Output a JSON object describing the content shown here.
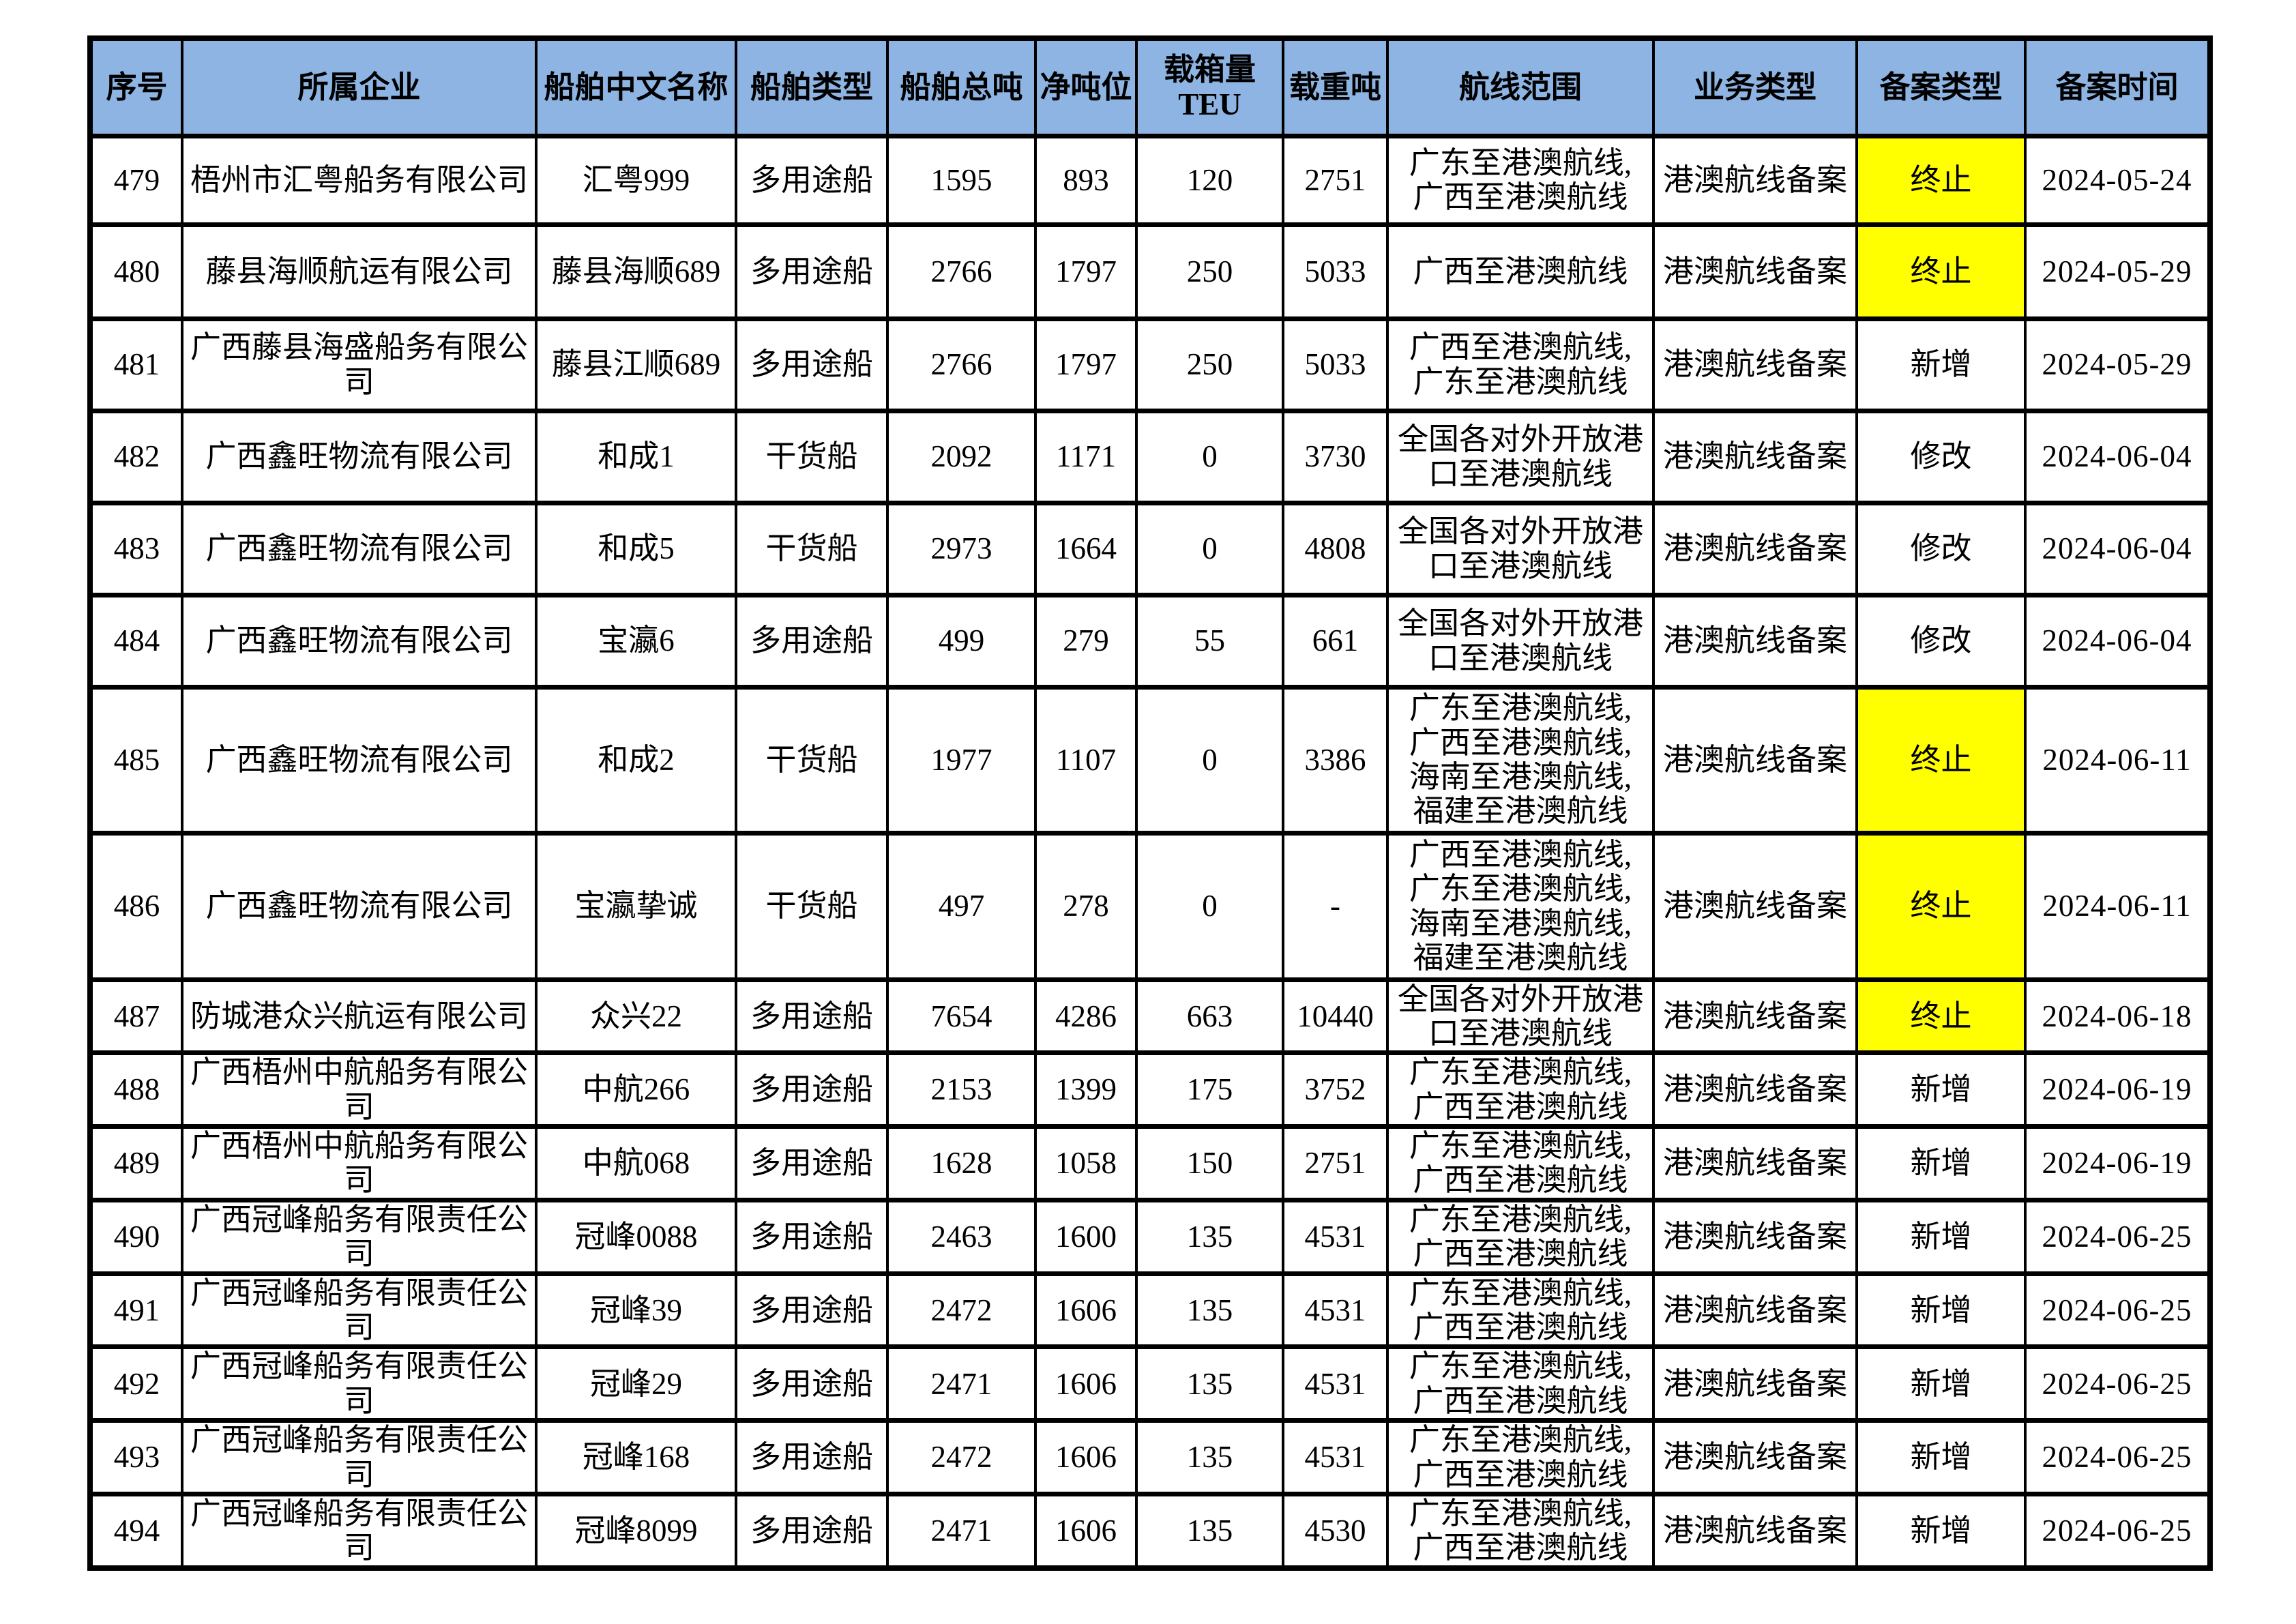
{
  "colors": {
    "header_bg": "#8DB4E2",
    "highlight": "#FFFF00",
    "border": "#000000",
    "page_bg": "#FFFFFF"
  },
  "table": {
    "columns": [
      {
        "key": "seq",
        "label": "序号"
      },
      {
        "key": "company",
        "label": "所属企业"
      },
      {
        "key": "ship_name",
        "label": "船舶中文名称"
      },
      {
        "key": "ship_type",
        "label": "船舶类型"
      },
      {
        "key": "gross_tonnage",
        "label": "船舶总吨"
      },
      {
        "key": "net_tonnage",
        "label": "净吨位"
      },
      {
        "key": "teu",
        "label": "载箱量TEU"
      },
      {
        "key": "dwt",
        "label": "载重吨"
      },
      {
        "key": "route",
        "label": "航线范围"
      },
      {
        "key": "business_type",
        "label": "业务类型"
      },
      {
        "key": "filing_type",
        "label": "备案类型"
      },
      {
        "key": "filing_date",
        "label": "备案时间"
      }
    ],
    "rows": [
      {
        "seq": "479",
        "company": "梧州市汇粤船务有限公司",
        "ship_name": "汇粤999",
        "ship_type": "多用途船",
        "gross_tonnage": "1595",
        "net_tonnage": "893",
        "teu": "120",
        "dwt": "2751",
        "route": "广东至港澳航线,\n广西至港澳航线",
        "business_type": "港澳航线备案",
        "filing_type": "终止",
        "filing_highlight": true,
        "filing_date": "2024-05-24"
      },
      {
        "seq": "480",
        "company": "藤县海顺航运有限公司",
        "ship_name": "藤县海顺689",
        "ship_type": "多用途船",
        "gross_tonnage": "2766",
        "net_tonnage": "1797",
        "teu": "250",
        "dwt": "5033",
        "route": "广西至港澳航线",
        "business_type": "港澳航线备案",
        "filing_type": "终止",
        "filing_highlight": true,
        "filing_date": "2024-05-29"
      },
      {
        "seq": "481",
        "company": "广西藤县海盛船务有限公司",
        "ship_name": "藤县江顺689",
        "ship_type": "多用途船",
        "gross_tonnage": "2766",
        "net_tonnage": "1797",
        "teu": "250",
        "dwt": "5033",
        "route": "广西至港澳航线,\n广东至港澳航线",
        "business_type": "港澳航线备案",
        "filing_type": "新增",
        "filing_highlight": false,
        "filing_date": "2024-05-29"
      },
      {
        "seq": "482",
        "company": "广西鑫旺物流有限公司",
        "ship_name": "和成1",
        "ship_type": "干货船",
        "gross_tonnage": "2092",
        "net_tonnage": "1171",
        "teu": "0",
        "dwt": "3730",
        "route": "全国各对外开放港\n口至港澳航线",
        "business_type": "港澳航线备案",
        "filing_type": "修改",
        "filing_highlight": false,
        "filing_date": "2024-06-04"
      },
      {
        "seq": "483",
        "company": "广西鑫旺物流有限公司",
        "ship_name": "和成5",
        "ship_type": "干货船",
        "gross_tonnage": "2973",
        "net_tonnage": "1664",
        "teu": "0",
        "dwt": "4808",
        "route": "全国各对外开放港\n口至港澳航线",
        "business_type": "港澳航线备案",
        "filing_type": "修改",
        "filing_highlight": false,
        "filing_date": "2024-06-04"
      },
      {
        "seq": "484",
        "company": "广西鑫旺物流有限公司",
        "ship_name": "宝瀛6",
        "ship_type": "多用途船",
        "gross_tonnage": "499",
        "net_tonnage": "279",
        "teu": "55",
        "dwt": "661",
        "route": "全国各对外开放港\n口至港澳航线",
        "business_type": "港澳航线备案",
        "filing_type": "修改",
        "filing_highlight": false,
        "filing_date": "2024-06-04"
      },
      {
        "seq": "485",
        "company": "广西鑫旺物流有限公司",
        "ship_name": "和成2",
        "ship_type": "干货船",
        "gross_tonnage": "1977",
        "net_tonnage": "1107",
        "teu": "0",
        "dwt": "3386",
        "route": "广东至港澳航线,\n广西至港澳航线,\n海南至港澳航线,\n福建至港澳航线",
        "business_type": "港澳航线备案",
        "filing_type": "终止",
        "filing_highlight": true,
        "filing_date": "2024-06-11"
      },
      {
        "seq": "486",
        "company": "广西鑫旺物流有限公司",
        "ship_name": "宝瀛挚诚",
        "ship_type": "干货船",
        "gross_tonnage": "497",
        "net_tonnage": "278",
        "teu": "0",
        "dwt": "-",
        "route": "广西至港澳航线,\n广东至港澳航线,\n海南至港澳航线,\n福建至港澳航线",
        "business_type": "港澳航线备案",
        "filing_type": "终止",
        "filing_highlight": true,
        "filing_date": "2024-06-11"
      },
      {
        "seq": "487",
        "company": "防城港众兴航运有限公司",
        "ship_name": "众兴22",
        "ship_type": "多用途船",
        "gross_tonnage": "7654",
        "net_tonnage": "4286",
        "teu": "663",
        "dwt": "10440",
        "route": "全国各对外开放港\n口至港澳航线",
        "business_type": "港澳航线备案",
        "filing_type": "终止",
        "filing_highlight": true,
        "filing_date": "2024-06-18"
      },
      {
        "seq": "488",
        "company": "广西梧州中航船务有限公司",
        "ship_name": "中航266",
        "ship_type": "多用途船",
        "gross_tonnage": "2153",
        "net_tonnage": "1399",
        "teu": "175",
        "dwt": "3752",
        "route": "广东至港澳航线,\n广西至港澳航线",
        "business_type": "港澳航线备案",
        "filing_type": "新增",
        "filing_highlight": false,
        "filing_date": "2024-06-19"
      },
      {
        "seq": "489",
        "company": "广西梧州中航船务有限公司",
        "ship_name": "中航068",
        "ship_type": "多用途船",
        "gross_tonnage": "1628",
        "net_tonnage": "1058",
        "teu": "150",
        "dwt": "2751",
        "route": "广东至港澳航线,\n广西至港澳航线",
        "business_type": "港澳航线备案",
        "filing_type": "新增",
        "filing_highlight": false,
        "filing_date": "2024-06-19"
      },
      {
        "seq": "490",
        "company": "广西冠峰船务有限责任公司",
        "ship_name": "冠峰0088",
        "ship_type": "多用途船",
        "gross_tonnage": "2463",
        "net_tonnage": "1600",
        "teu": "135",
        "dwt": "4531",
        "route": "广东至港澳航线,\n广西至港澳航线",
        "business_type": "港澳航线备案",
        "filing_type": "新增",
        "filing_highlight": false,
        "filing_date": "2024-06-25"
      },
      {
        "seq": "491",
        "company": "广西冠峰船务有限责任公司",
        "ship_name": "冠峰39",
        "ship_type": "多用途船",
        "gross_tonnage": "2472",
        "net_tonnage": "1606",
        "teu": "135",
        "dwt": "4531",
        "route": "广东至港澳航线,\n广西至港澳航线",
        "business_type": "港澳航线备案",
        "filing_type": "新增",
        "filing_highlight": false,
        "filing_date": "2024-06-25"
      },
      {
        "seq": "492",
        "company": "广西冠峰船务有限责任公司",
        "ship_name": "冠峰29",
        "ship_type": "多用途船",
        "gross_tonnage": "2471",
        "net_tonnage": "1606",
        "teu": "135",
        "dwt": "4531",
        "route": "广东至港澳航线,\n广西至港澳航线",
        "business_type": "港澳航线备案",
        "filing_type": "新增",
        "filing_highlight": false,
        "filing_date": "2024-06-25"
      },
      {
        "seq": "493",
        "company": "广西冠峰船务有限责任公司",
        "ship_name": "冠峰168",
        "ship_type": "多用途船",
        "gross_tonnage": "2472",
        "net_tonnage": "1606",
        "teu": "135",
        "dwt": "4531",
        "route": "广东至港澳航线,\n广西至港澳航线",
        "business_type": "港澳航线备案",
        "filing_type": "新增",
        "filing_highlight": false,
        "filing_date": "2024-06-25"
      },
      {
        "seq": "494",
        "company": "广西冠峰船务有限责任公司",
        "ship_name": "冠峰8099",
        "ship_type": "多用途船",
        "gross_tonnage": "2471",
        "net_tonnage": "1606",
        "teu": "135",
        "dwt": "4530",
        "route": "广东至港澳航线,\n广西至港澳航线",
        "business_type": "港澳航线备案",
        "filing_type": "新增",
        "filing_highlight": false,
        "filing_date": "2024-06-25"
      }
    ]
  }
}
